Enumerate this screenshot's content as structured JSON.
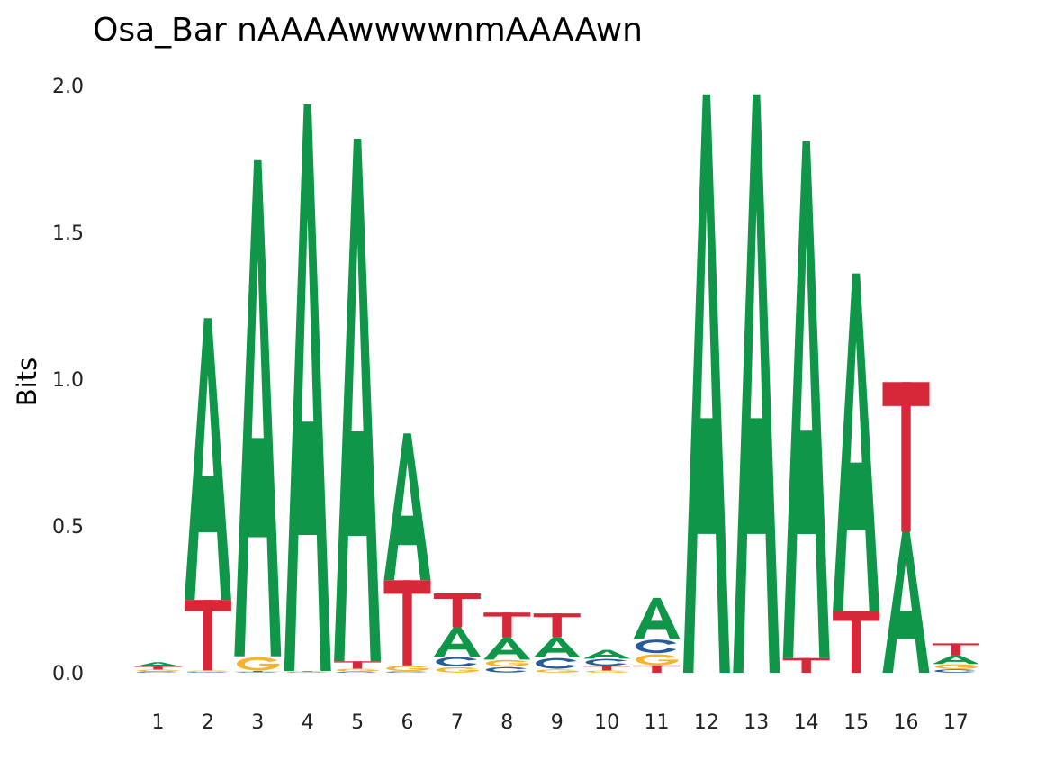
{
  "chart_data": {
    "type": "sequence-logo",
    "title": "Osa_Bar nAAAAwwwwnmAAAAwn",
    "ylabel": "Bits",
    "xlabel": "",
    "ylim": [
      0,
      2
    ],
    "yticks": [
      "0.0",
      "0.5",
      "1.0",
      "1.5",
      "2.0"
    ],
    "grid": false,
    "legend": "none",
    "colors": {
      "A": "#109648",
      "C": "#255C99",
      "G": "#F7B32B",
      "T": "#D62839"
    },
    "positions": [
      {
        "label": "1",
        "letters": [
          [
            "C",
            0.005
          ],
          [
            "G",
            0.006
          ],
          [
            "T",
            0.01
          ],
          [
            "A",
            0.015
          ]
        ]
      },
      {
        "label": "2",
        "letters": [
          [
            "C",
            0.003
          ],
          [
            "G",
            0.005
          ],
          [
            "T",
            0.24
          ],
          [
            "A",
            0.96
          ]
        ]
      },
      {
        "label": "3",
        "letters": [
          [
            "C",
            0.003
          ],
          [
            "T",
            0.003
          ],
          [
            "G",
            0.05
          ],
          [
            "A",
            1.69
          ]
        ]
      },
      {
        "label": "4",
        "letters": [
          [
            "C",
            0.002
          ],
          [
            "G",
            0.002
          ],
          [
            "T",
            0.002
          ],
          [
            "A",
            1.93
          ]
        ]
      },
      {
        "label": "5",
        "letters": [
          [
            "C",
            0.004
          ],
          [
            "G",
            0.01
          ],
          [
            "T",
            0.025
          ],
          [
            "A",
            1.78
          ]
        ]
      },
      {
        "label": "6",
        "letters": [
          [
            "C",
            0.005
          ],
          [
            "G",
            0.02
          ],
          [
            "T",
            0.29
          ],
          [
            "A",
            0.5
          ]
        ]
      },
      {
        "label": "7",
        "letters": [
          [
            "G",
            0.02
          ],
          [
            "C",
            0.035
          ],
          [
            "A",
            0.1
          ],
          [
            "T",
            0.115
          ]
        ]
      },
      {
        "label": "8",
        "letters": [
          [
            "C",
            0.02
          ],
          [
            "G",
            0.025
          ],
          [
            "A",
            0.075
          ],
          [
            "T",
            0.085
          ]
        ]
      },
      {
        "label": "9",
        "letters": [
          [
            "G",
            0.012
          ],
          [
            "C",
            0.04
          ],
          [
            "A",
            0.07
          ],
          [
            "T",
            0.08
          ]
        ]
      },
      {
        "label": "10",
        "letters": [
          [
            "G",
            0.008
          ],
          [
            "T",
            0.015
          ],
          [
            "C",
            0.025
          ],
          [
            "A",
            0.03
          ]
        ]
      },
      {
        "label": "11",
        "letters": [
          [
            "T",
            0.025
          ],
          [
            "G",
            0.04
          ],
          [
            "C",
            0.05
          ],
          [
            "A",
            0.14
          ]
        ]
      },
      {
        "label": "12",
        "letters": [
          [
            "A",
            1.97
          ]
        ]
      },
      {
        "label": "13",
        "letters": [
          [
            "A",
            1.97
          ]
        ]
      },
      {
        "label": "14",
        "letters": [
          [
            "T",
            0.05
          ],
          [
            "A",
            1.76
          ]
        ]
      },
      {
        "label": "15",
        "letters": [
          [
            "T",
            0.21
          ],
          [
            "A",
            1.15
          ]
        ]
      },
      {
        "label": "16",
        "letters": [
          [
            "A",
            0.48
          ],
          [
            "T",
            0.51
          ]
        ]
      },
      {
        "label": "17",
        "letters": [
          [
            "C",
            0.012
          ],
          [
            "G",
            0.018
          ],
          [
            "A",
            0.03
          ],
          [
            "T",
            0.04
          ]
        ]
      }
    ]
  }
}
